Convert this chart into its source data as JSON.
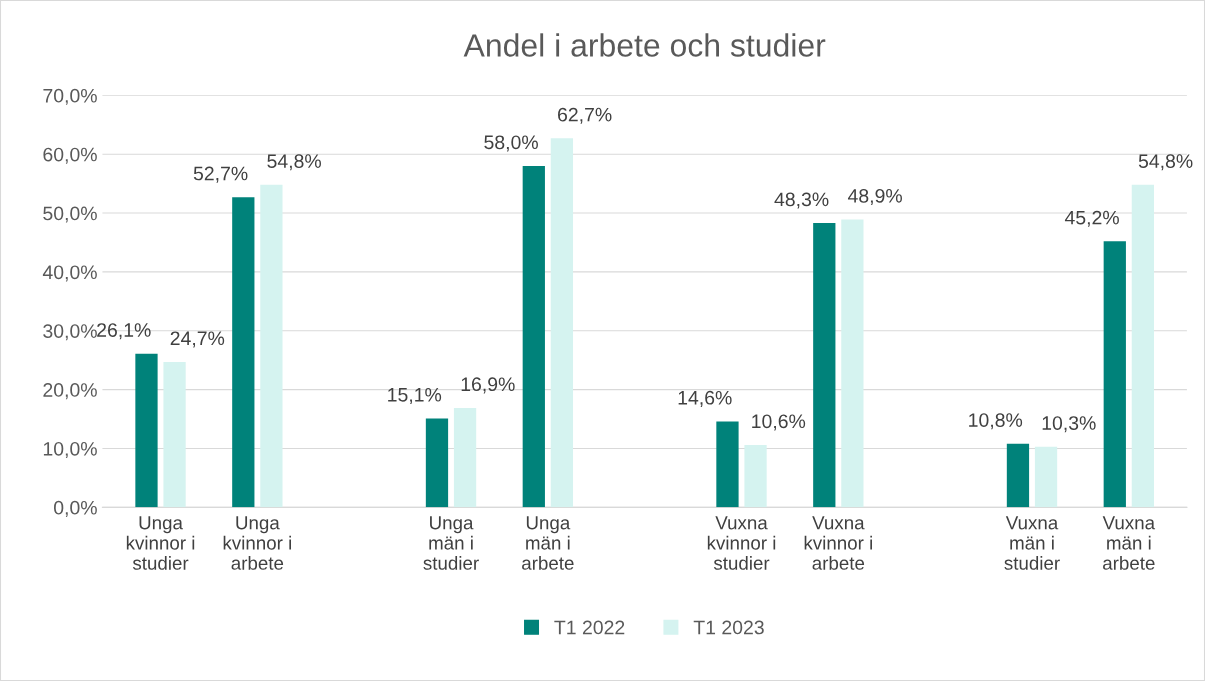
{
  "chart_data": {
    "type": "bar",
    "title": "Andel i arbete och studier",
    "categories": [
      "Unga\nkvinnor i\nstudier",
      "Unga\nkvinnor i\narbete",
      null,
      "Unga\nmän i\nstudier",
      "Unga\nmän i\narbete",
      null,
      "Vuxna\nkvinnor i\nstudier",
      "Vuxna\nkvinnor i\narbete",
      null,
      "Vuxna\nmän i\nstudier",
      "Vuxna\nmän i\narbete"
    ],
    "series": [
      {
        "name": "T1 2022",
        "color": "#00827a",
        "values": [
          26.1,
          52.7,
          null,
          15.1,
          58.0,
          null,
          14.6,
          48.3,
          null,
          10.8,
          45.2
        ],
        "value_labels": [
          "26,1%",
          "52,7%",
          null,
          "15,1%",
          "58,0%",
          null,
          "14,6%",
          "48,3%",
          null,
          "10,8%",
          "45,2%"
        ]
      },
      {
        "name": "T1 2023",
        "color": "#d5f3f0",
        "values": [
          24.7,
          54.8,
          null,
          16.9,
          62.7,
          null,
          10.6,
          48.9,
          null,
          10.3,
          54.8
        ],
        "value_labels": [
          "24,7%",
          "54,8%",
          null,
          "16,9%",
          "62,7%",
          null,
          "10,6%",
          "48,9%",
          null,
          "10,3%",
          "54,8%"
        ]
      }
    ],
    "ylim": [
      0,
      70
    ],
    "yticks": [
      {
        "value": 0,
        "label": "0,0%"
      },
      {
        "value": 10,
        "label": "10,0%"
      },
      {
        "value": 20,
        "label": "20,0%"
      },
      {
        "value": 30,
        "label": "30,0%"
      },
      {
        "value": 40,
        "label": "40,0%"
      },
      {
        "value": 50,
        "label": "50,0%"
      },
      {
        "value": 60,
        "label": "60,0%"
      },
      {
        "value": 70,
        "label": "70,0%"
      }
    ],
    "grid": "y",
    "legend": "bottom"
  }
}
